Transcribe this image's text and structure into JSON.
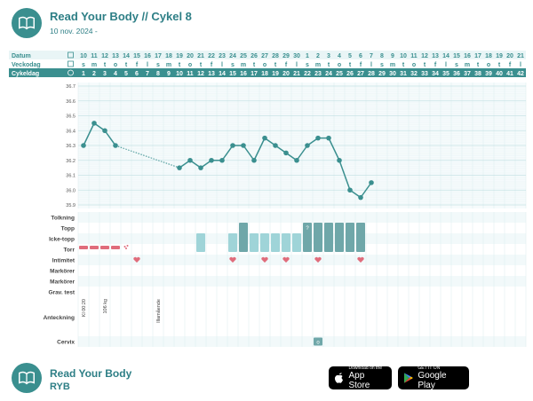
{
  "header": {
    "title": "Read Your Body // Cykel 8",
    "date": "10 nov. 2024 -"
  },
  "rows": {
    "datum": "Datum",
    "veckodag": "Veckodag",
    "cykeldag": "Cykeldag",
    "tolkning": "Tolkning",
    "topp": "Topp",
    "icke_topp": "Icke-topp",
    "torr": "Torr",
    "intimitet": "Intimitet",
    "markorer1": "Markörer",
    "markorer2": "Markörer",
    "grav_test": "Grav. test",
    "anteckning": "Anteckning",
    "cervix": "Cervix"
  },
  "dates": [
    "10",
    "11",
    "12",
    "13",
    "14",
    "15",
    "16",
    "17",
    "18",
    "19",
    "20",
    "21",
    "22",
    "23",
    "24",
    "25",
    "26",
    "27",
    "28",
    "29",
    "30",
    "1",
    "2",
    "3",
    "4",
    "5",
    "6",
    "7",
    "8",
    "9",
    "10",
    "11",
    "12",
    "13",
    "14",
    "15",
    "16",
    "17",
    "18",
    "19",
    "20",
    "21"
  ],
  "weekdays": [
    "s",
    "m",
    "t",
    "o",
    "t",
    "f",
    "l",
    "s",
    "m",
    "t",
    "o",
    "t",
    "f",
    "l",
    "s",
    "m",
    "t",
    "o",
    "t",
    "f",
    "l",
    "s",
    "m",
    "t",
    "o",
    "t",
    "f",
    "l",
    "s",
    "m",
    "t",
    "o",
    "t",
    "f",
    "l",
    "s",
    "m",
    "t",
    "o",
    "t",
    "f",
    "l"
  ],
  "cycle_days": [
    "1",
    "2",
    "3",
    "4",
    "5",
    "6",
    "7",
    "8",
    "9",
    "10",
    "11",
    "12",
    "13",
    "14",
    "15",
    "16",
    "17",
    "18",
    "19",
    "20",
    "21",
    "22",
    "23",
    "24",
    "25",
    "26",
    "27",
    "28",
    "29",
    "30",
    "31",
    "32",
    "33",
    "34",
    "35",
    "36",
    "37",
    "38",
    "39",
    "40",
    "41",
    "42"
  ],
  "chart_data": {
    "type": "line",
    "ylabel": "",
    "y_ticks": [
      "36.7",
      "36.6",
      "36.5",
      "36.4",
      "36.3",
      "36.2",
      "36.1",
      "36.0",
      "35.9"
    ],
    "ylim": [
      35.9,
      36.7
    ],
    "grid": true,
    "series": [
      {
        "points": [
          [
            1,
            36.3
          ],
          [
            2,
            36.45
          ],
          [
            3,
            36.4
          ],
          [
            4,
            36.3
          ],
          [
            10,
            36.15
          ],
          [
            11,
            36.2
          ],
          [
            12,
            36.15
          ],
          [
            13,
            36.2
          ],
          [
            14,
            36.2
          ],
          [
            15,
            36.3
          ],
          [
            16,
            36.3
          ],
          [
            17,
            36.2
          ],
          [
            18,
            36.35
          ],
          [
            19,
            36.3
          ],
          [
            20,
            36.25
          ],
          [
            21,
            36.2
          ],
          [
            22,
            36.3
          ],
          [
            23,
            36.35
          ],
          [
            24,
            36.35
          ],
          [
            25,
            36.2
          ],
          [
            26,
            36.0
          ],
          [
            27,
            35.95
          ],
          [
            28,
            36.05
          ]
        ]
      }
    ],
    "dotted_segments": [
      [
        4,
        10
      ]
    ]
  },
  "mucus": {
    "torr_days": [
      1,
      2,
      3,
      4
    ],
    "icke_topp_days": [
      12,
      15,
      17,
      18,
      19,
      20,
      21
    ],
    "topp_days": [
      16,
      22,
      23,
      24,
      25,
      26,
      27
    ],
    "tolkning_mark_day": 22,
    "tolkning_mark": "?",
    "spot_day": 5
  },
  "intimacy_days": [
    6,
    15,
    18,
    20,
    23,
    27
  ],
  "notes": [
    {
      "day": 1,
      "text": "Kl 00:20"
    },
    {
      "day": 3,
      "text": "106 kg"
    },
    {
      "day": 8,
      "text": "Illamående"
    }
  ],
  "cervix": {
    "day": 23,
    "symbol": "o"
  },
  "footer": {
    "title": "Read Your Body",
    "subtitle": "RYB"
  },
  "app_store": {
    "small": "Download on the",
    "big": "App Store"
  },
  "google_play": {
    "small": "GET IT ON",
    "big": "Google Play"
  },
  "colors": {
    "teal": "#3a8f8f",
    "dark_teal": "#6fa7a9",
    "light_teal": "#9fd4d8",
    "red": "#e06c7b",
    "header_bg": "#e9f5f6",
    "grid": "#d9ecee"
  }
}
